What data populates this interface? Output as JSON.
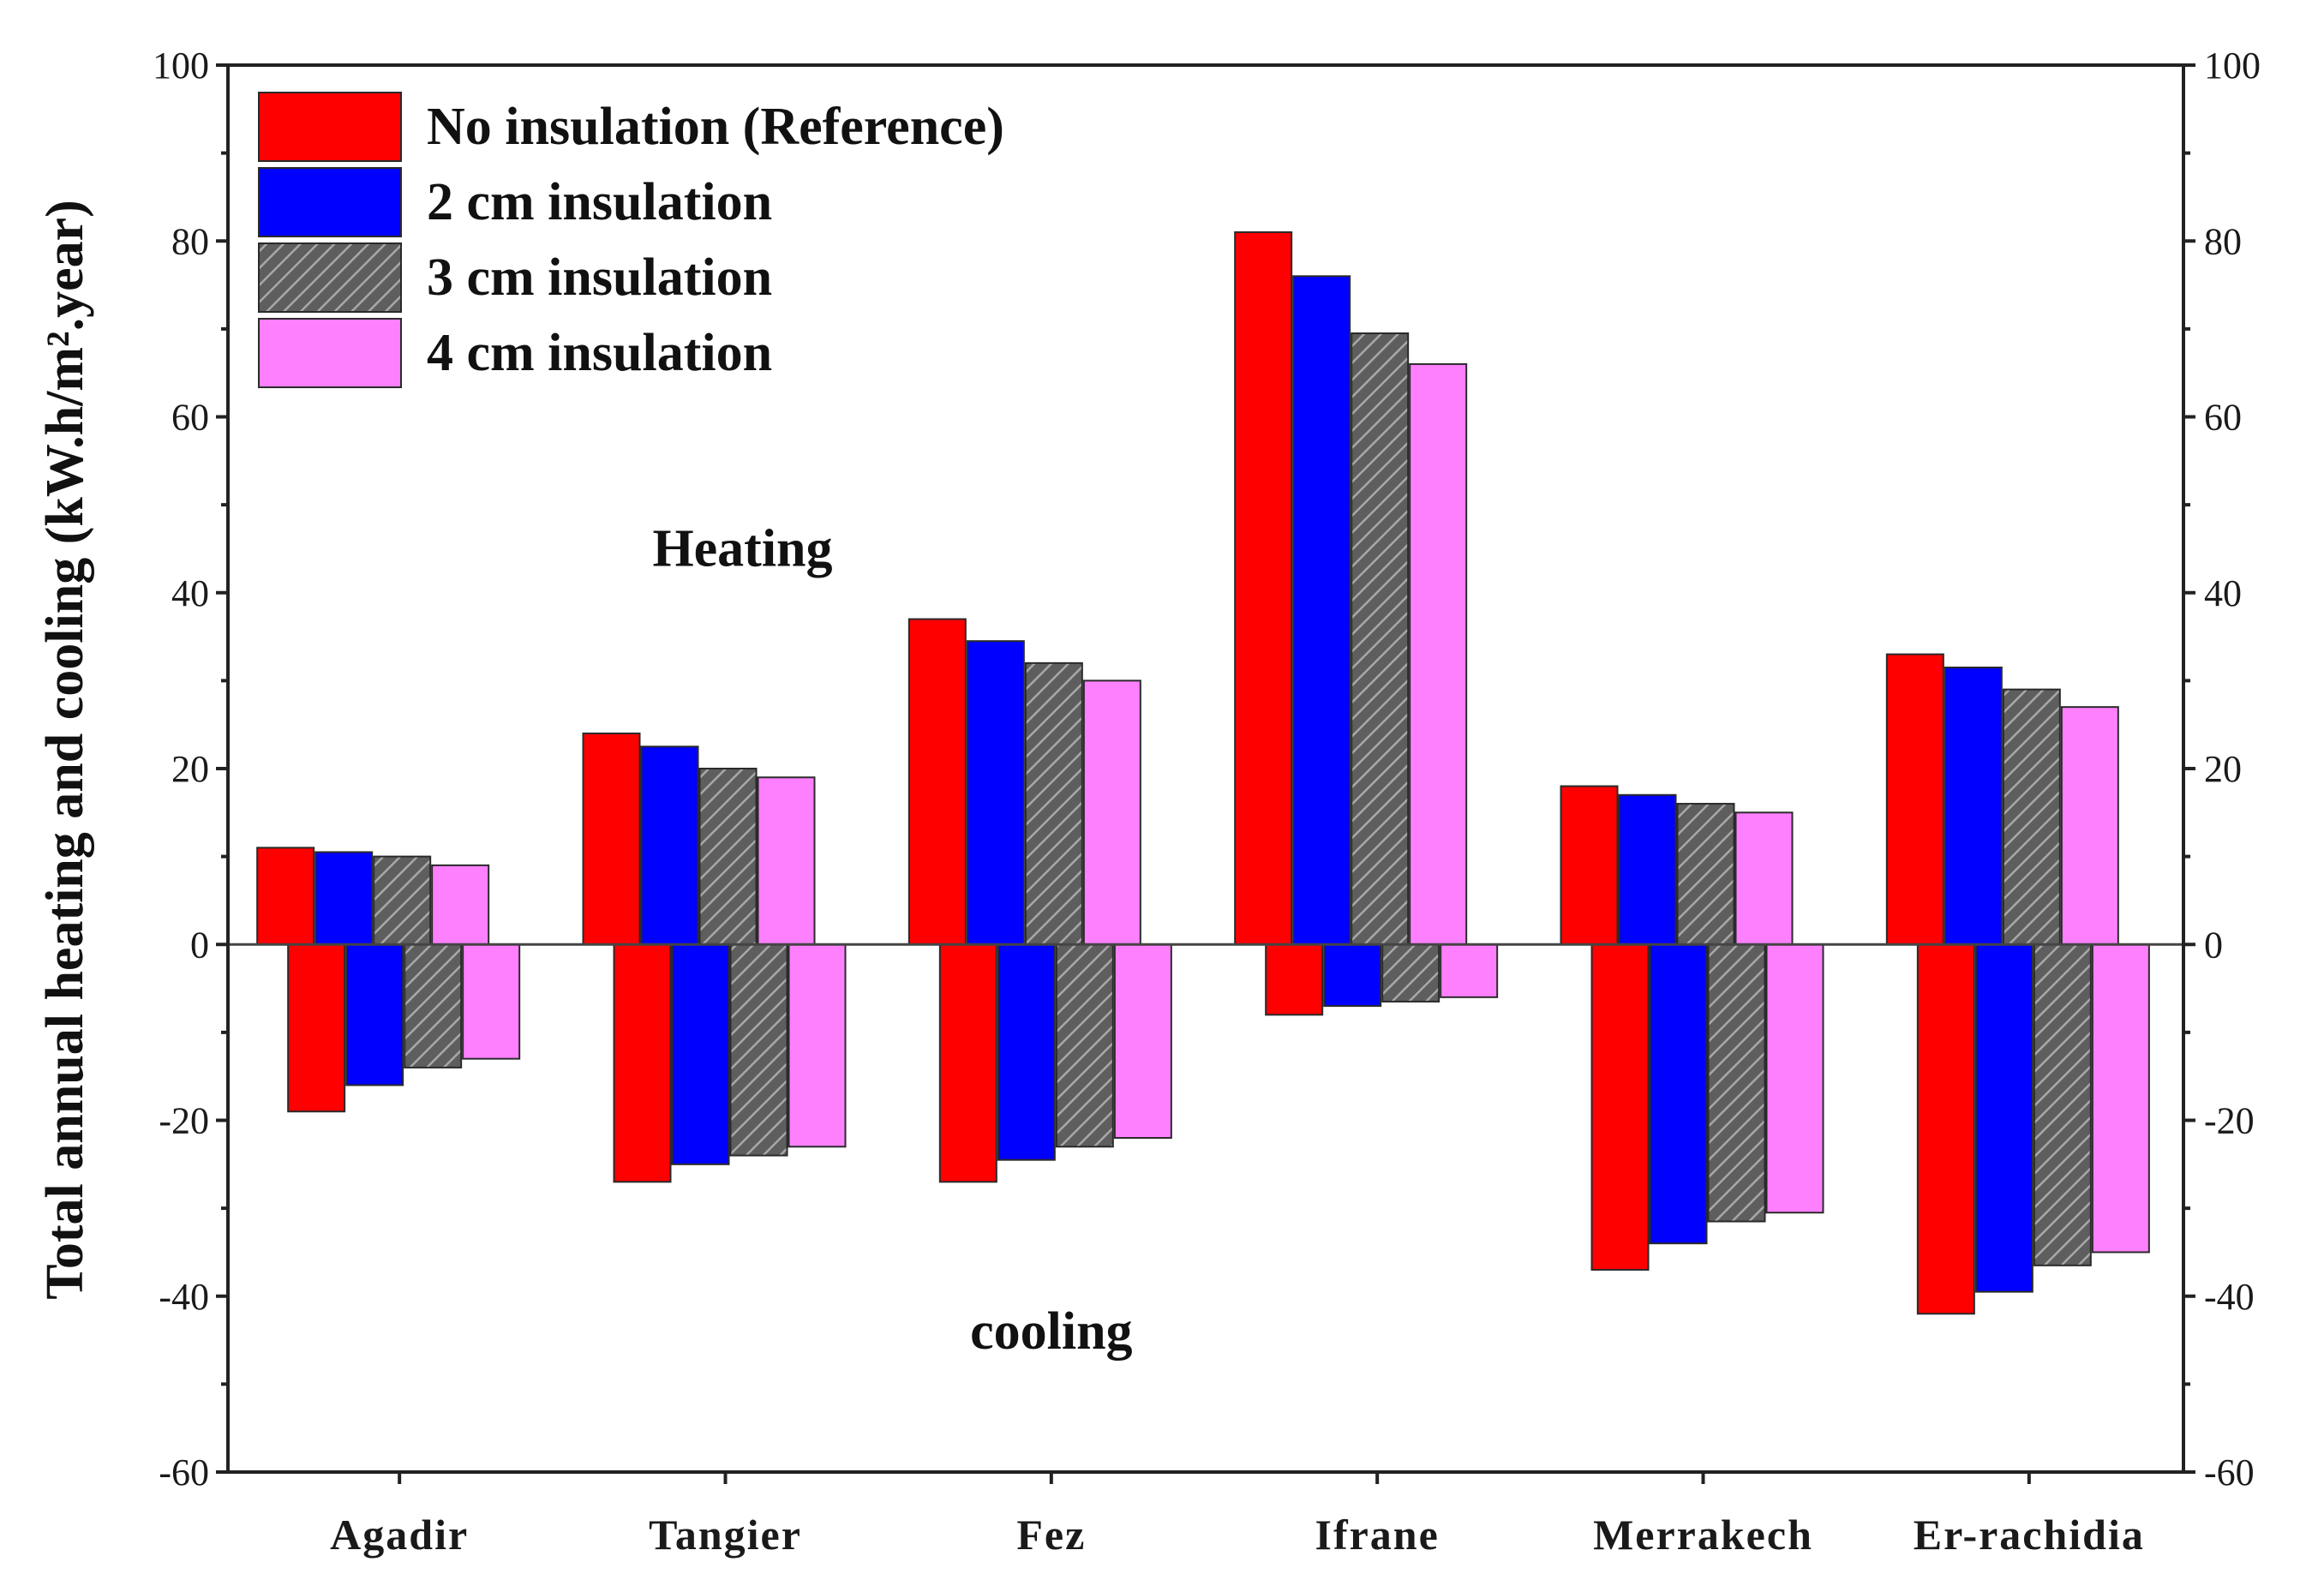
{
  "chart_data": {
    "type": "bar",
    "title": "",
    "ylabel": "Total annual heating and cooling (kW.h/m².year)",
    "xlabel": "",
    "ylim": [
      -60,
      100
    ],
    "yticks": [
      -60,
      -40,
      -20,
      0,
      20,
      40,
      60,
      80,
      100
    ],
    "right_axis": true,
    "legend_position": "top-left",
    "categories": [
      "Agadir",
      "Tangier",
      "Fez",
      "Ifrane",
      "Merrakech",
      "Er-rachidia"
    ],
    "series": [
      {
        "name": "No insulation (Reference)",
        "color": "#ff0000",
        "pattern": "solid",
        "heating": [
          11,
          24,
          37,
          81,
          18,
          33
        ],
        "cooling": [
          -19,
          -27,
          -27,
          -8,
          -37,
          -42
        ]
      },
      {
        "name": "2 cm insulation",
        "color": "#0000ff",
        "pattern": "solid",
        "heating": [
          10.5,
          22.5,
          34.5,
          76,
          17,
          31.5
        ],
        "cooling": [
          -16,
          -25,
          -24.5,
          -7,
          -34,
          -39.5
        ]
      },
      {
        "name": "3 cm insulation",
        "color": "#6b6b6b",
        "pattern": "hatch",
        "heating": [
          10,
          20,
          32,
          69.5,
          16,
          29
        ],
        "cooling": [
          -14,
          -24,
          -23,
          -6.5,
          -31.5,
          -36.5
        ]
      },
      {
        "name": "4 cm insulation",
        "color": "#ff80ff",
        "pattern": "solid",
        "heating": [
          9,
          19,
          30,
          66,
          15,
          27
        ],
        "cooling": [
          -13,
          -23,
          -22,
          -6,
          -30.5,
          -35
        ]
      }
    ],
    "annotations": [
      {
        "text": "Heating",
        "x": "Tangier",
        "y": 45
      },
      {
        "text": "cooling",
        "x": "Fez",
        "y": -44
      }
    ]
  }
}
